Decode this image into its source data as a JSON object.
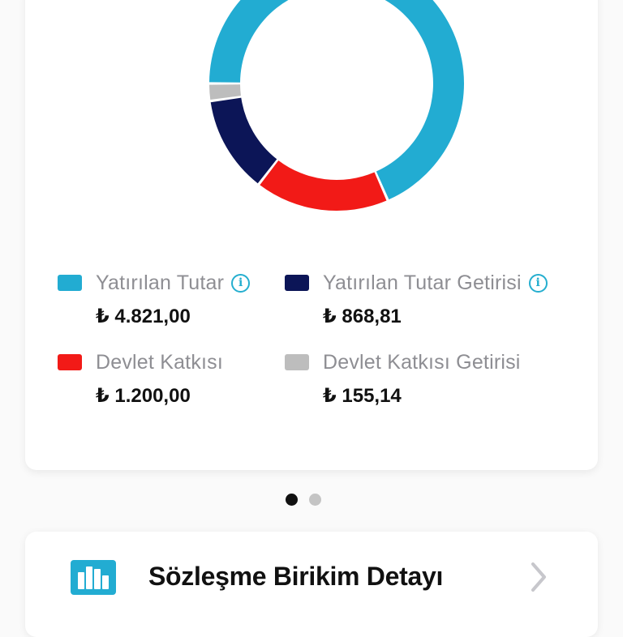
{
  "chart_data": {
    "type": "pie",
    "variant": "donut",
    "title": "",
    "categories": [
      "Yatırılan Tutar",
      "Devlet Katkısı",
      "Yatırılan Tutar Getirisi",
      "Devlet Katkısı Getirisi"
    ],
    "values": [
      4821.0,
      1200.0,
      868.81,
      155.14
    ],
    "colors": [
      "#22acd2",
      "#f21a17",
      "#0c1557",
      "#bdbdbd"
    ],
    "start_angle_deg": 270,
    "direction": "clockwise",
    "legend_position": "bottom"
  },
  "legend": {
    "items": [
      {
        "label": "Yatırılan Tutar",
        "value": "₺ 4.821,00",
        "color": "#22acd2",
        "info": true
      },
      {
        "label": "Yatırılan Tutar Getirisi",
        "value": "₺ 868,81",
        "color": "#0c1557",
        "info": true
      },
      {
        "label": "Devlet Katkısı",
        "value": "₺ 1.200,00",
        "color": "#f21a17",
        "info": false
      },
      {
        "label": "Devlet Katkısı Getirisi",
        "value": "₺ 155,14",
        "color": "#bdbdbd",
        "info": false
      }
    ],
    "info_icon": "info-circle-icon"
  },
  "pager": {
    "count": 2,
    "active": 0,
    "active_color": "#111111",
    "inactive_color": "#c4c4c4"
  },
  "detail": {
    "title": "Sözleşme Birikim Detayı",
    "icon": "bar-chart-icon",
    "chevron": "chevron-right-icon",
    "accent": "#22acd2"
  }
}
